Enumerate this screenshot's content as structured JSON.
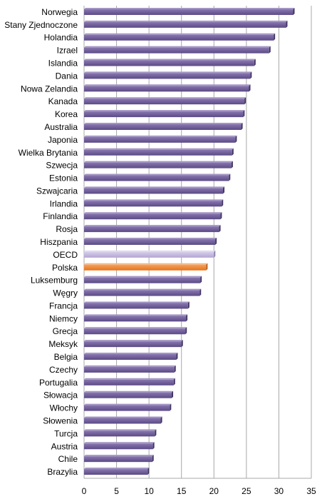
{
  "chart_data": {
    "type": "bar",
    "orientation": "horizontal",
    "title": "",
    "xlabel": "",
    "ylabel": "",
    "xlim": [
      0,
      35
    ],
    "xticks": [
      0,
      5,
      10,
      15,
      20,
      25,
      30,
      35
    ],
    "grid": "vertical",
    "legend": "none",
    "categories": [
      "Norwegia",
      "Stany Zjednoczone",
      "Holandia",
      "Izrael",
      "Islandia",
      "Dania",
      "Nowa Zelandia",
      "Kanada",
      "Korea",
      "Australia",
      "Japonia",
      "Wielka Brytania",
      "Szwecja",
      "Estonia",
      "Szwajcaria",
      "Irlandia",
      "Finlandia",
      "Rosja",
      "Hiszpania",
      "OECD",
      "Polska",
      "Luksemburg",
      "Węgry",
      "Francja",
      "Niemcy",
      "Grecja",
      "Meksyk",
      "Belgia",
      "Czechy",
      "Portugalia",
      "Słowacja",
      "Włochy",
      "Słowenia",
      "Turcja",
      "Austria",
      "Chile",
      "Brazylia"
    ],
    "values": [
      32.2,
      31.1,
      29.2,
      28.5,
      26.2,
      25.6,
      25.4,
      24.7,
      24.5,
      24.2,
      23.3,
      22.8,
      22.7,
      22.3,
      21.4,
      21.2,
      21.0,
      20.8,
      20.2,
      20.0,
      18.8,
      17.9,
      17.8,
      16.0,
      15.7,
      15.6,
      15.0,
      14.2,
      13.9,
      13.8,
      13.5,
      13.2,
      11.8,
      10.9,
      10.6,
      10.5,
      9.8
    ],
    "colors": {
      "default": "#5b4a86",
      "default_top": "#8977b0",
      "highlight_oecd": "#b3a6d3",
      "highlight_polska": "#e8731a",
      "grid": "#a8a8a8"
    },
    "highlights": {
      "OECD": "highlight_oecd",
      "Polska": "highlight_polska"
    }
  }
}
